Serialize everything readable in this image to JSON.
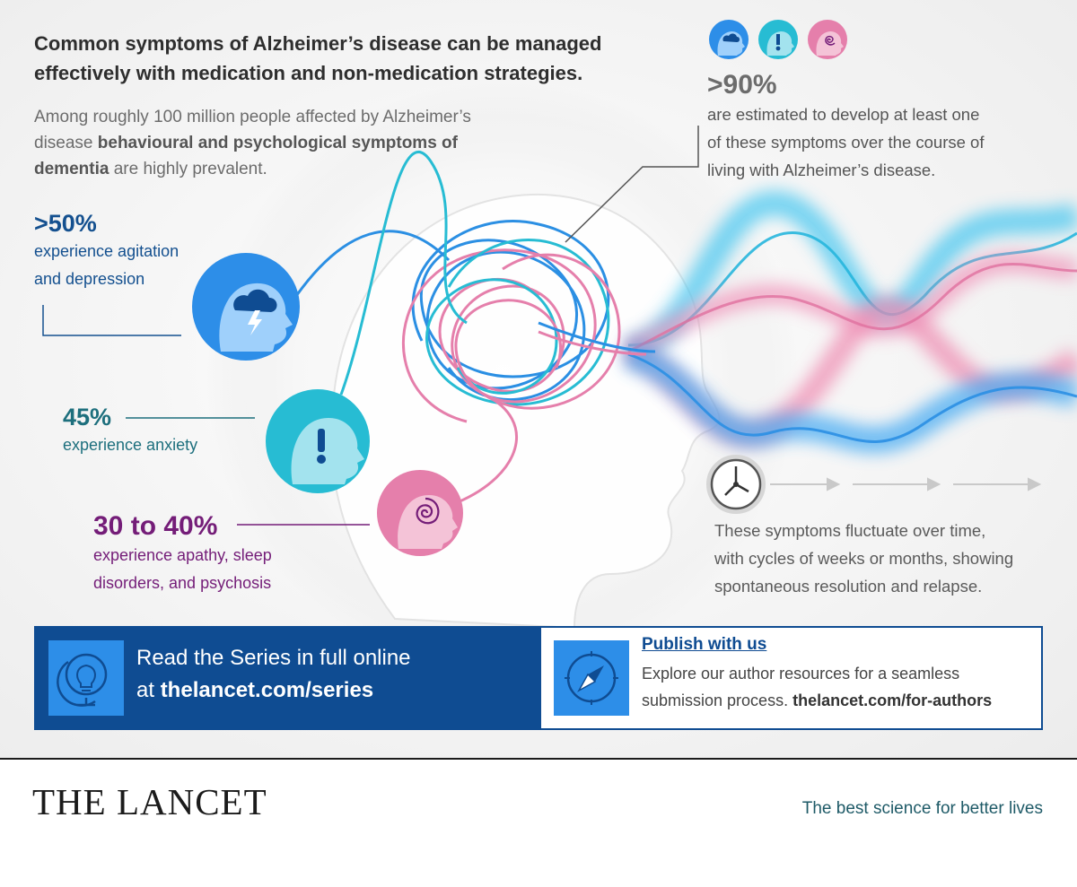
{
  "headline": "Common symptoms of Alzheimer’s disease can be managed effectively with medication and non-medication strategies.",
  "intro": {
    "part1": "Among roughly 100 million people affected by Alzheimer’s disease ",
    "bold": "behavioural and psychological symptoms of dementia",
    "part2": " are highly prevalent."
  },
  "stats": [
    {
      "percent": ">50%",
      "line1": "experience agitation",
      "line2": "and depression",
      "color": "#14508f"
    },
    {
      "percent": "45%",
      "line1": "experience anxiety",
      "line2": "",
      "color": "#1d6f7d"
    },
    {
      "percent": "30 to 40%",
      "line1": "experience apathy, sleep",
      "line2": "disorders, and psychosis",
      "color": "#741d78"
    }
  ],
  "overall": {
    "percent": ">90%",
    "line1": "are estimated to develop at least one",
    "line2": "of these symptoms over the course of",
    "line3": "living with Alzheimer’s disease."
  },
  "fluctuation": {
    "line1": "These symptoms fluctuate over time,",
    "line2": "with cycles of weeks or months, showing",
    "line3": "spontaneous resolution and relapse."
  },
  "icons": {
    "agitation": "storm-cloud-head-icon",
    "anxiety": "exclamation-head-icon",
    "apathy": "spiral-head-icon",
    "clock": "clock-icon",
    "globe": "lightbulb-globe-icon",
    "compass": "compass-icon"
  },
  "banner": {
    "read_line1": "Read the Series in full online",
    "read_prefix": "at ",
    "read_url": "thelancet.com/series",
    "publish_title": "Publish with us",
    "publish_line1": "Explore our author resources for a seamless",
    "publish_line2": "submission process. ",
    "publish_url": "thelancet.com/for-authors"
  },
  "footer": {
    "brand": "THE LANCET",
    "tagline": "The best science for better lives"
  },
  "colors": {
    "blue": "#2d8ee8",
    "teal": "#27bcd3",
    "pink": "#e57fab",
    "navy": "#0f4c92"
  }
}
